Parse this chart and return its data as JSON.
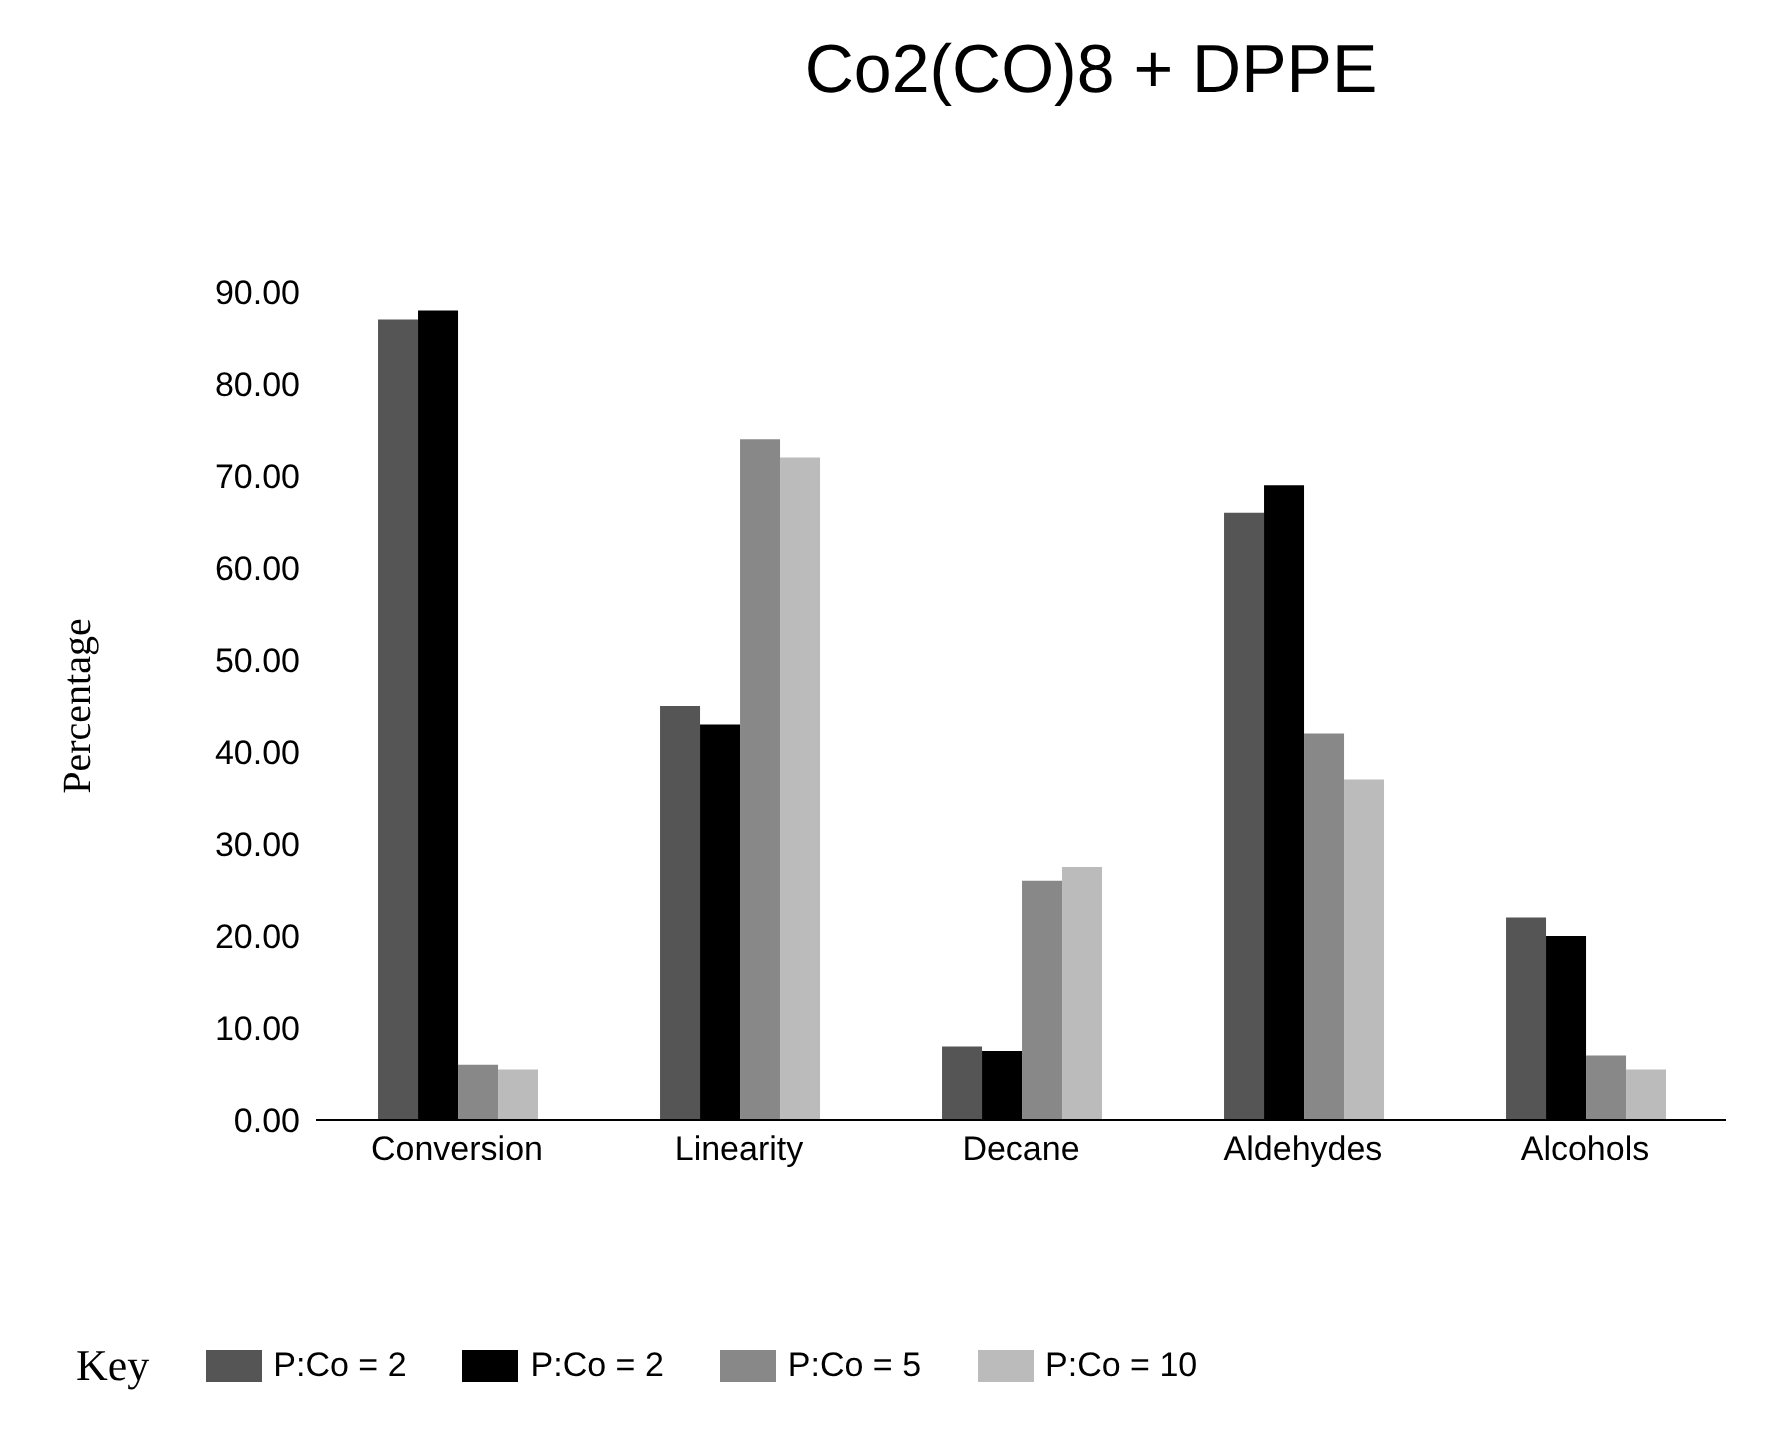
{
  "chart_data": {
    "type": "bar",
    "title": "Co2(CO)8 + DPPE",
    "ylabel": "Percentage",
    "legend_title": "Key",
    "categories": [
      "Conversion",
      "Linearity",
      "Decane",
      "Aldehydes",
      "Alcohols"
    ],
    "series": [
      {
        "name": "P:Co = 2",
        "color": "#555555",
        "values": [
          87,
          45,
          8,
          66,
          22
        ]
      },
      {
        "name": "P:Co = 2",
        "color": "#000000",
        "values": [
          88,
          43,
          7.5,
          69,
          20
        ]
      },
      {
        "name": "P:Co = 5",
        "color": "#888888",
        "values": [
          6,
          74,
          26,
          42,
          7
        ]
      },
      {
        "name": "P:Co = 10",
        "color": "#bbbbbb",
        "values": [
          5.5,
          72,
          27.5,
          37,
          5.5
        ]
      }
    ],
    "ylim": [
      0,
      90
    ],
    "yticks": [
      {
        "value": 0,
        "label": "0.00"
      },
      {
        "value": 10,
        "label": "10.00"
      },
      {
        "value": 20,
        "label": "20.00"
      },
      {
        "value": 30,
        "label": "30.00"
      },
      {
        "value": 40,
        "label": "40.00"
      },
      {
        "value": 50,
        "label": "50.00"
      },
      {
        "value": 60,
        "label": "60.00"
      },
      {
        "value": 70,
        "label": "70.00"
      },
      {
        "value": 80,
        "label": "80.00"
      },
      {
        "value": 90,
        "label": "90.00"
      }
    ],
    "grid": false,
    "legend": "bottom"
  }
}
